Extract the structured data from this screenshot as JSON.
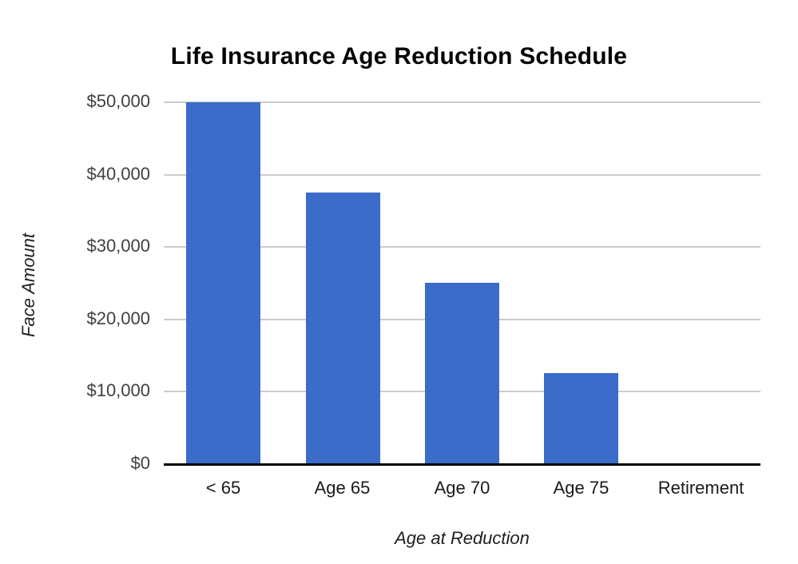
{
  "chart_data": {
    "type": "bar",
    "title": "Life Insurance Age Reduction Schedule",
    "xlabel": "Age at Reduction",
    "ylabel": "Face Amount",
    "categories": [
      "< 65",
      "Age 65",
      "Age 70",
      "Age 75",
      "Retirement"
    ],
    "values": [
      50000,
      37500,
      25000,
      12500,
      0
    ],
    "ylim": [
      0,
      50000
    ],
    "ytick_step": 10000,
    "yticks": [
      {
        "value": 0,
        "label": "$0"
      },
      {
        "value": 10000,
        "label": "$10,000"
      },
      {
        "value": 20000,
        "label": "$20,000"
      },
      {
        "value": 30000,
        "label": "$30,000"
      },
      {
        "value": 40000,
        "label": "$40,000"
      },
      {
        "value": 50000,
        "label": "$50,000"
      }
    ],
    "grid": true,
    "legend": "none",
    "colors": {
      "bar": "#3b6cc9",
      "gridline": "#cccccc",
      "axis_line": "#000000",
      "title_text": "#000000",
      "y_tick_text": "#404040",
      "x_tick_text": "#1a1a1a",
      "axis_title_text": "#1f1f1f",
      "background": "#ffffff"
    }
  }
}
